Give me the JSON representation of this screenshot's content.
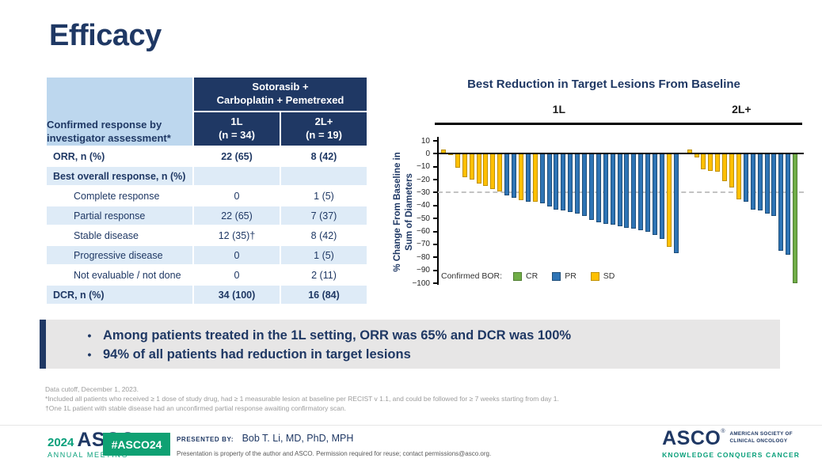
{
  "slide": {
    "title": "Efficacy"
  },
  "colors": {
    "navy": "#1F3864",
    "teal": "#0AA07B",
    "table_header_bg": "#1F3864",
    "corner_bg": "#BDD7EE",
    "row_shade": "#DEEBF7",
    "highlight_bg": "#E7E6E6",
    "bar_blue": "#2E74B5",
    "bar_yellow": "#FFC000",
    "bar_green": "#70AD47"
  },
  "table": {
    "corner_header": "Confirmed response by investigator assessment*",
    "group_header_line1": "Sotorasib +",
    "group_header_line2": "Carboplatin + Pemetrexed",
    "col_headers": [
      {
        "line1": "1L",
        "line2": "(n = 34)"
      },
      {
        "line1": "2L+",
        "line2": "(n = 19)"
      }
    ],
    "rows": [
      {
        "label": "ORR, n (%)",
        "v1": "22 (65)",
        "v2": "8 (42)",
        "bold": true,
        "indent": false,
        "shade": false
      },
      {
        "label": "Best overall response, n (%)",
        "v1": "",
        "v2": "",
        "bold": true,
        "indent": false,
        "shade": true
      },
      {
        "label": "Complete response",
        "v1": "0",
        "v2": "1 (5)",
        "bold": false,
        "indent": true,
        "shade": false
      },
      {
        "label": "Partial response",
        "v1": "22 (65)",
        "v2": "7 (37)",
        "bold": false,
        "indent": true,
        "shade": true
      },
      {
        "label": "Stable disease",
        "v1": "12 (35)†",
        "v2": "8 (42)",
        "bold": false,
        "indent": true,
        "shade": false
      },
      {
        "label": "Progressive disease",
        "v1": "0",
        "v2": "1 (5)",
        "bold": false,
        "indent": true,
        "shade": true
      },
      {
        "label": "Not evaluable / not done",
        "v1": "0",
        "v2": "2 (11)",
        "bold": false,
        "indent": true,
        "shade": false
      },
      {
        "label": "DCR, n (%)",
        "v1": "34 (100)",
        "v2": "16 (84)",
        "bold": true,
        "indent": false,
        "shade": true
      }
    ]
  },
  "chart_data": {
    "type": "bar",
    "title": "Best Reduction in Target Lesions From Baseline",
    "ylabel": "% Change From Baseline in Sum of Diameters",
    "ylabel_lines": [
      "% Change From Baseline in",
      "Sum of Diameters"
    ],
    "ylim": [
      -100,
      10
    ],
    "yticks": [
      10,
      0,
      -10,
      -20,
      -30,
      -40,
      -50,
      -60,
      -70,
      -80,
      -90,
      -100
    ],
    "reference_line_y": -30,
    "legend_title": "Confirmed BOR:",
    "legend": [
      {
        "label": "CR",
        "color": "#70AD47",
        "border_color": "#507E32"
      },
      {
        "label": "PR",
        "color": "#2E74B5",
        "border_color": "#1F4E79"
      },
      {
        "label": "SD",
        "color": "#FFC000",
        "border_color": "#BF9000"
      }
    ],
    "groups": [
      {
        "label": "1L",
        "bars": [
          {
            "value": 3,
            "bor": "SD"
          },
          {
            "value": -1,
            "bor": "SD"
          },
          {
            "value": -11,
            "bor": "SD"
          },
          {
            "value": -18,
            "bor": "SD"
          },
          {
            "value": -20,
            "bor": "SD"
          },
          {
            "value": -23,
            "bor": "SD"
          },
          {
            "value": -25,
            "bor": "SD"
          },
          {
            "value": -27,
            "bor": "SD"
          },
          {
            "value": -29,
            "bor": "SD"
          },
          {
            "value": -32,
            "bor": "PR"
          },
          {
            "value": -34,
            "bor": "PR"
          },
          {
            "value": -36,
            "bor": "SD"
          },
          {
            "value": -37,
            "bor": "PR"
          },
          {
            "value": -37,
            "bor": "SD"
          },
          {
            "value": -38,
            "bor": "PR"
          },
          {
            "value": -41,
            "bor": "PR"
          },
          {
            "value": -43,
            "bor": "PR"
          },
          {
            "value": -44,
            "bor": "PR"
          },
          {
            "value": -45,
            "bor": "PR"
          },
          {
            "value": -46,
            "bor": "PR"
          },
          {
            "value": -48,
            "bor": "PR"
          },
          {
            "value": -51,
            "bor": "PR"
          },
          {
            "value": -53,
            "bor": "PR"
          },
          {
            "value": -54,
            "bor": "PR"
          },
          {
            "value": -55,
            "bor": "PR"
          },
          {
            "value": -56,
            "bor": "PR"
          },
          {
            "value": -57,
            "bor": "PR"
          },
          {
            "value": -58,
            "bor": "PR"
          },
          {
            "value": -59,
            "bor": "PR"
          },
          {
            "value": -60,
            "bor": "PR"
          },
          {
            "value": -63,
            "bor": "PR"
          },
          {
            "value": -66,
            "bor": "PR"
          },
          {
            "value": -72,
            "bor": "SD"
          },
          {
            "value": -77,
            "bor": "PR"
          }
        ]
      },
      {
        "label": "2L+",
        "bars": [
          {
            "value": 3,
            "bor": "SD"
          },
          {
            "value": -3,
            "bor": "SD"
          },
          {
            "value": -12,
            "bor": "SD"
          },
          {
            "value": -13,
            "bor": "SD"
          },
          {
            "value": -14,
            "bor": "SD"
          },
          {
            "value": -21,
            "bor": "SD"
          },
          {
            "value": -26,
            "bor": "SD"
          },
          {
            "value": -35,
            "bor": "SD"
          },
          {
            "value": -37,
            "bor": "PR"
          },
          {
            "value": -43,
            "bor": "PR"
          },
          {
            "value": -44,
            "bor": "PR"
          },
          {
            "value": -46,
            "bor": "PR"
          },
          {
            "value": -48,
            "bor": "PR"
          },
          {
            "value": -75,
            "bor": "PR"
          },
          {
            "value": -78,
            "bor": "PR"
          },
          {
            "value": -100,
            "bor": "CR"
          }
        ]
      }
    ]
  },
  "highlights": {
    "bullet_glyph": "•",
    "bullets": [
      "Among patients treated in the 1L setting, ORR was 65% and DCR was 100%",
      "94% of all patients had reduction in target lesions"
    ]
  },
  "footnotes": [
    "Data cutoff, December 1, 2023.",
    "*Included all patients who received ≥ 1 dose of study drug, had ≥ 1 measurable lesion at baseline per RECIST v 1.1, and could be followed for ≥ 7 weeks starting from day 1.",
    "†One 1L patient with stable disease had an unconfirmed partial response awaiting confirmatory scan."
  ],
  "footer": {
    "meeting_logo": {
      "year": "2024",
      "org": "ASCO",
      "reg": "®",
      "sub": "ANNUAL MEETING"
    },
    "hashtag": "#ASCO24",
    "presented_by_label": "PRESENTED BY:",
    "presenter": "Bob T. Li, MD, PhD, MPH",
    "disclaimer": "Presentation is property of the author and ASCO. Permission required for reuse; contact permissions@asco.org.",
    "asco_logo": {
      "org": "ASCO",
      "reg": "®",
      "line1": "AMERICAN SOCIETY OF",
      "line2": "CLINICAL ONCOLOGY",
      "tagline": "KNOWLEDGE CONQUERS CANCER"
    }
  }
}
